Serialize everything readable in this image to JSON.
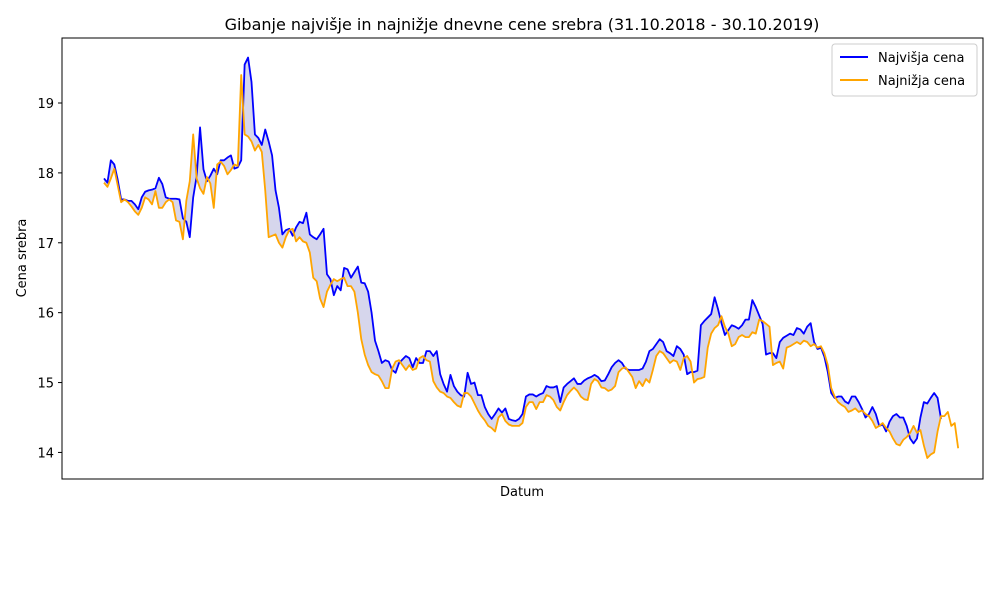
{
  "chart_data": {
    "type": "line",
    "title": "Gibanje najvišje in najnižje dnevne cene srebra (31.10.2018 - 30.10.2019)",
    "xlabel": "Datum",
    "ylabel": "Cena srebra",
    "ylim": [
      13.62,
      19.93
    ],
    "yticks": [
      "14",
      "15",
      "16",
      "17",
      "18",
      "19"
    ],
    "grid": false,
    "legend_position": "top-right",
    "fill_between": true,
    "fill_color": "#c8c8e6",
    "series": [
      {
        "name": "Najvišja cena",
        "color": "#0000ff",
        "values": [
          17.92,
          17.86,
          18.18,
          18.12,
          17.9,
          17.62,
          17.62,
          17.6,
          17.6,
          17.55,
          17.48,
          17.65,
          17.73,
          17.75,
          17.76,
          17.78,
          17.93,
          17.84,
          17.65,
          17.63,
          17.63,
          17.63,
          17.62,
          17.35,
          17.3,
          17.08,
          17.65,
          17.95,
          18.65,
          18.05,
          17.88,
          17.96,
          18.06,
          17.98,
          18.18,
          18.18,
          18.22,
          18.25,
          18.06,
          18.08,
          18.18,
          19.55,
          19.65,
          19.3,
          18.55,
          18.5,
          18.4,
          18.62,
          18.45,
          18.25,
          17.75,
          17.5,
          17.12,
          17.18,
          17.2,
          17.1,
          17.22,
          17.3,
          17.28,
          17.43,
          17.12,
          17.08,
          17.05,
          17.12,
          17.2,
          16.55,
          16.48,
          16.25,
          16.38,
          16.32,
          16.64,
          16.62,
          16.5,
          16.58,
          16.66,
          16.43,
          16.42,
          16.3,
          16.0,
          15.6,
          15.45,
          15.28,
          15.32,
          15.3,
          15.18,
          15.14,
          15.28,
          15.33,
          15.38,
          15.35,
          15.22,
          15.35,
          15.28,
          15.28,
          15.45,
          15.45,
          15.38,
          15.45,
          15.12,
          14.98,
          14.87,
          15.11,
          14.95,
          14.87,
          14.82,
          14.8,
          15.14,
          14.98,
          15.0,
          14.82,
          14.82,
          14.65,
          14.55,
          14.48,
          14.55,
          14.63,
          14.57,
          14.63,
          14.48,
          14.46,
          14.45,
          14.48,
          14.55,
          14.8,
          14.83,
          14.83,
          14.8,
          14.83,
          14.85,
          14.95,
          14.93,
          14.93,
          14.95,
          14.72,
          14.93,
          14.98,
          15.02,
          15.06,
          14.98,
          14.98,
          15.03,
          15.06,
          15.08,
          15.11,
          15.08,
          15.02,
          15.03,
          15.12,
          15.22,
          15.28,
          15.32,
          15.28,
          15.2,
          15.18,
          15.18,
          15.18,
          15.18,
          15.2,
          15.3,
          15.45,
          15.48,
          15.55,
          15.62,
          15.58,
          15.45,
          15.42,
          15.38,
          15.52,
          15.48,
          15.4,
          15.12,
          15.15,
          15.15,
          15.17,
          15.82,
          15.88,
          15.93,
          15.98,
          16.22,
          16.05,
          15.85,
          15.68,
          15.75,
          15.82,
          15.8,
          15.77,
          15.82,
          15.9,
          15.9,
          16.18,
          16.08,
          15.96,
          15.84,
          15.4,
          15.42,
          15.42,
          15.35,
          15.58,
          15.64,
          15.67,
          15.7,
          15.68,
          15.78,
          15.76,
          15.7,
          15.8,
          15.85,
          15.58,
          15.48,
          15.5,
          15.37,
          15.15,
          14.85,
          14.78,
          14.8,
          14.8,
          14.73,
          14.7,
          14.8,
          14.8,
          14.72,
          14.62,
          14.5,
          14.55,
          14.65,
          14.55,
          14.38,
          14.4,
          14.3,
          14.44,
          14.52,
          14.55,
          14.5,
          14.5,
          14.38,
          14.2,
          14.13,
          14.2,
          14.5,
          14.72,
          14.7,
          14.78,
          14.85,
          14.78,
          14.48
        ]
      },
      {
        "name": "Najnižja cena",
        "color": "#ffa500",
        "values": [
          17.86,
          17.8,
          17.92,
          18.06,
          17.82,
          17.58,
          17.62,
          17.58,
          17.52,
          17.45,
          17.4,
          17.5,
          17.65,
          17.62,
          17.55,
          17.74,
          17.5,
          17.5,
          17.58,
          17.62,
          17.58,
          17.32,
          17.3,
          17.05,
          17.6,
          17.88,
          18.55,
          17.92,
          17.78,
          17.7,
          17.94,
          17.85,
          17.5,
          18.12,
          18.16,
          18.1,
          17.98,
          18.04,
          18.12,
          18.1,
          19.4,
          18.55,
          18.52,
          18.45,
          18.32,
          18.4,
          18.3,
          17.75,
          17.08,
          17.1,
          17.12,
          17.0,
          16.93,
          17.08,
          17.18,
          17.2,
          17.02,
          17.08,
          17.02,
          17.0,
          16.86,
          16.5,
          16.45,
          16.2,
          16.08,
          16.3,
          16.4,
          16.48,
          16.45,
          16.48,
          16.5,
          16.38,
          16.38,
          16.3,
          16.0,
          15.62,
          15.4,
          15.25,
          15.15,
          15.12,
          15.1,
          15.02,
          14.92,
          14.92,
          15.2,
          15.3,
          15.32,
          15.25,
          15.18,
          15.25,
          15.18,
          15.2,
          15.35,
          15.38,
          15.32,
          15.3,
          15.02,
          14.93,
          14.87,
          14.85,
          14.8,
          14.78,
          14.72,
          14.67,
          14.65,
          14.85,
          14.85,
          14.8,
          14.7,
          14.6,
          14.52,
          14.46,
          14.38,
          14.35,
          14.3,
          14.5,
          14.55,
          14.45,
          14.4,
          14.38,
          14.38,
          14.38,
          14.42,
          14.65,
          14.72,
          14.72,
          14.62,
          14.72,
          14.72,
          14.82,
          14.8,
          14.75,
          14.65,
          14.6,
          14.72,
          14.82,
          14.88,
          14.93,
          14.88,
          14.8,
          14.76,
          14.75,
          14.98,
          15.05,
          15.02,
          14.93,
          14.92,
          14.88,
          14.9,
          14.95,
          15.15,
          15.2,
          15.22,
          15.15,
          15.08,
          14.92,
          15.02,
          14.95,
          15.05,
          15.0,
          15.18,
          15.38,
          15.45,
          15.42,
          15.35,
          15.28,
          15.32,
          15.3,
          15.18,
          15.35,
          15.38,
          15.3,
          15.0,
          15.05,
          15.06,
          15.08,
          15.5,
          15.7,
          15.78,
          15.82,
          15.95,
          15.8,
          15.7,
          15.52,
          15.55,
          15.65,
          15.68,
          15.65,
          15.65,
          15.72,
          15.7,
          15.9,
          15.88,
          15.84,
          15.8,
          15.25,
          15.28,
          15.3,
          15.2,
          15.5,
          15.52,
          15.55,
          15.58,
          15.55,
          15.6,
          15.58,
          15.52,
          15.55,
          15.5,
          15.52,
          15.42,
          15.25,
          14.92,
          14.8,
          14.72,
          14.68,
          14.65,
          14.58,
          14.6,
          14.63,
          14.58,
          14.6,
          14.55,
          14.52,
          14.45,
          14.35,
          14.38,
          14.42,
          14.35,
          14.3,
          14.2,
          14.12,
          14.1,
          14.18,
          14.22,
          14.28,
          14.38,
          14.28,
          14.32,
          14.1,
          13.92,
          13.97,
          14.0,
          14.3,
          14.52,
          14.52,
          14.58,
          14.38,
          14.42,
          14.06
        ]
      }
    ]
  }
}
